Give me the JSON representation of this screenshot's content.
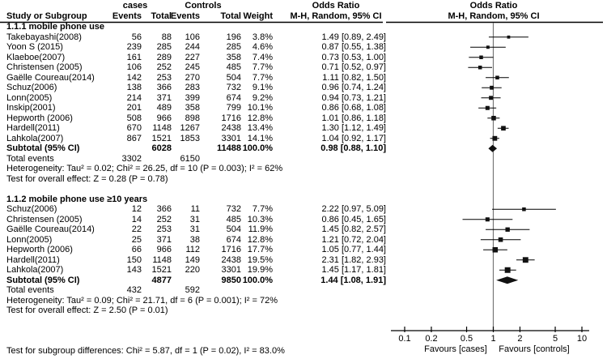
{
  "header": {
    "group_cases": "cases",
    "group_controls": "Controls",
    "col_study": "Study or Subgroup",
    "col_events": "Events",
    "col_total": "Total",
    "col_weight": "Weight",
    "or_title": "Odds Ratio",
    "or_subtitle": "M-H, Random, 95% CI"
  },
  "chart_data": {
    "type": "forest",
    "x_scale": "log",
    "x_range": [
      0.1,
      10
    ],
    "x_ticks": [
      0.1,
      0.2,
      0.5,
      1,
      2,
      5,
      10
    ],
    "null_line": 1,
    "favours_left": "Favours [cases]",
    "favours_right": "Favours [controls]",
    "footer": "Test for subgroup differences: Chi² = 5.87, df = 1 (P = 0.02), I² = 83.0%",
    "colors": {
      "marker": "#111111",
      "ci_line": "#000000",
      "null_line": "#777777",
      "axis": "#000000"
    },
    "subgroups": [
      {
        "title": "1.1.1 mobile phone use",
        "studies": [
          {
            "study": "Takebayashi(2008)",
            "cases_events": 56,
            "cases_total": 88,
            "control_events": 106,
            "control_total": 196,
            "weight": "3.8%",
            "or": 1.49,
            "lo": 0.89,
            "hi": 2.49,
            "or_text": "1.49 [0.89, 2.49]"
          },
          {
            "study": "Yoon S (2015)",
            "cases_events": 239,
            "cases_total": 285,
            "control_events": 244,
            "control_total": 285,
            "weight": "4.6%",
            "or": 0.87,
            "lo": 0.55,
            "hi": 1.38,
            "or_text": "0.87 [0.55, 1.38]"
          },
          {
            "study": "Klaeboe(2007)",
            "cases_events": 161,
            "cases_total": 289,
            "control_events": 227,
            "control_total": 358,
            "weight": "7.4%",
            "or": 0.73,
            "lo": 0.53,
            "hi": 1.0,
            "or_text": "0.73 [0.53, 1.00]"
          },
          {
            "study": "Christensen (2005)",
            "cases_events": 106,
            "cases_total": 252,
            "control_events": 245,
            "control_total": 485,
            "weight": "7.7%",
            "or": 0.71,
            "lo": 0.52,
            "hi": 0.97,
            "or_text": "0.71 [0.52, 0.97]"
          },
          {
            "study": "Gaëlle Coureau(2014)",
            "cases_events": 142,
            "cases_total": 253,
            "control_events": 270,
            "control_total": 504,
            "weight": "7.7%",
            "or": 1.11,
            "lo": 0.82,
            "hi": 1.5,
            "or_text": "1.11 [0.82, 1.50]"
          },
          {
            "study": "Schuz(2006)",
            "cases_events": 138,
            "cases_total": 366,
            "control_events": 283,
            "control_total": 732,
            "weight": "9.1%",
            "or": 0.96,
            "lo": 0.74,
            "hi": 1.24,
            "or_text": "0.96 [0.74, 1.24]"
          },
          {
            "study": "Lonn(2005)",
            "cases_events": 214,
            "cases_total": 371,
            "control_events": 399,
            "control_total": 674,
            "weight": "9.2%",
            "or": 0.94,
            "lo": 0.73,
            "hi": 1.21,
            "or_text": "0.94 [0.73, 1.21]"
          },
          {
            "study": "Inskip(2001)",
            "cases_events": 201,
            "cases_total": 489,
            "control_events": 358,
            "control_total": 799,
            "weight": "10.1%",
            "or": 0.86,
            "lo": 0.68,
            "hi": 1.08,
            "or_text": "0.86 [0.68, 1.08]"
          },
          {
            "study": "Hepworth (2006)",
            "cases_events": 508,
            "cases_total": 966,
            "control_events": 898,
            "control_total": 1716,
            "weight": "12.8%",
            "or": 1.01,
            "lo": 0.86,
            "hi": 1.18,
            "or_text": "1.01 [0.86, 1.18]"
          },
          {
            "study": "Hardell(2011)",
            "cases_events": 670,
            "cases_total": 1148,
            "control_events": 1267,
            "control_total": 2438,
            "weight": "13.4%",
            "or": 1.3,
            "lo": 1.12,
            "hi": 1.49,
            "or_text": "1.30 [1.12, 1.49]"
          },
          {
            "study": "Lahkola(2007)",
            "cases_events": 867,
            "cases_total": 1521,
            "control_events": 1853,
            "control_total": 3301,
            "weight": "14.1%",
            "or": 1.04,
            "lo": 0.92,
            "hi": 1.17,
            "or_text": "1.04 [0.92, 1.17]"
          }
        ],
        "subtotal": {
          "label": "Subtotal (95% CI)",
          "cases_total": 6028,
          "control_total": 11488,
          "weight": "100.0%",
          "or": 0.98,
          "lo": 0.88,
          "hi": 1.1,
          "or_text": "0.98 [0.88, 1.10]"
        },
        "total_events": {
          "label": "Total events",
          "cases": 3302,
          "controls": 6150
        },
        "heterogeneity": "Heterogeneity: Tau² = 0.02; Chi² = 26.25, df = 10 (P = 0.003); I² = 62%",
        "overall": "Test for overall effect: Z = 0.28 (P = 0.78)"
      },
      {
        "title": "1.1.2 mobile phone use ≥10 years",
        "studies": [
          {
            "study": "Schuz(2006)",
            "cases_events": 12,
            "cases_total": 366,
            "control_events": 11,
            "control_total": 732,
            "weight": "7.7%",
            "or": 2.22,
            "lo": 0.97,
            "hi": 5.09,
            "or_text": "2.22 [0.97, 5.09]"
          },
          {
            "study": "Christensen (2005)",
            "cases_events": 14,
            "cases_total": 252,
            "control_events": 31,
            "control_total": 485,
            "weight": "10.3%",
            "or": 0.86,
            "lo": 0.45,
            "hi": 1.65,
            "or_text": "0.86 [0.45, 1.65]"
          },
          {
            "study": "Gaëlle Coureau(2014)",
            "cases_events": 22,
            "cases_total": 253,
            "control_events": 31,
            "control_total": 504,
            "weight": "11.9%",
            "or": 1.45,
            "lo": 0.82,
            "hi": 2.57,
            "or_text": "1.45 [0.82, 2.57]"
          },
          {
            "study": "Lonn(2005)",
            "cases_events": 25,
            "cases_total": 371,
            "control_events": 38,
            "control_total": 674,
            "weight": "12.8%",
            "or": 1.21,
            "lo": 0.72,
            "hi": 2.04,
            "or_text": "1.21 [0.72, 2.04]"
          },
          {
            "study": "Hepworth (2006)",
            "cases_events": 66,
            "cases_total": 966,
            "control_events": 112,
            "control_total": 1716,
            "weight": "17.7%",
            "or": 1.05,
            "lo": 0.77,
            "hi": 1.44,
            "or_text": "1.05 [0.77, 1.44]"
          },
          {
            "study": "Hardell(2011)",
            "cases_events": 150,
            "cases_total": 1148,
            "control_events": 149,
            "control_total": 2438,
            "weight": "19.5%",
            "or": 2.31,
            "lo": 1.82,
            "hi": 2.93,
            "or_text": "2.31 [1.82, 2.93]"
          },
          {
            "study": "Lahkola(2007)",
            "cases_events": 143,
            "cases_total": 1521,
            "control_events": 220,
            "control_total": 3301,
            "weight": "19.9%",
            "or": 1.45,
            "lo": 1.17,
            "hi": 1.81,
            "or_text": "1.45 [1.17, 1.81]"
          }
        ],
        "subtotal": {
          "label": "Subtotal (95% CI)",
          "cases_total": 4877,
          "control_total": 9850,
          "weight": "100.0%",
          "or": 1.44,
          "lo": 1.08,
          "hi": 1.91,
          "or_text": "1.44 [1.08, 1.91]"
        },
        "total_events": {
          "label": "Total events",
          "cases": 432,
          "controls": 592
        },
        "heterogeneity": "Heterogeneity: Tau² = 0.09; Chi² = 21.71, df = 6 (P = 0.001); I² = 72%",
        "overall": "Test for overall effect: Z = 2.50 (P = 0.01)"
      }
    ]
  }
}
